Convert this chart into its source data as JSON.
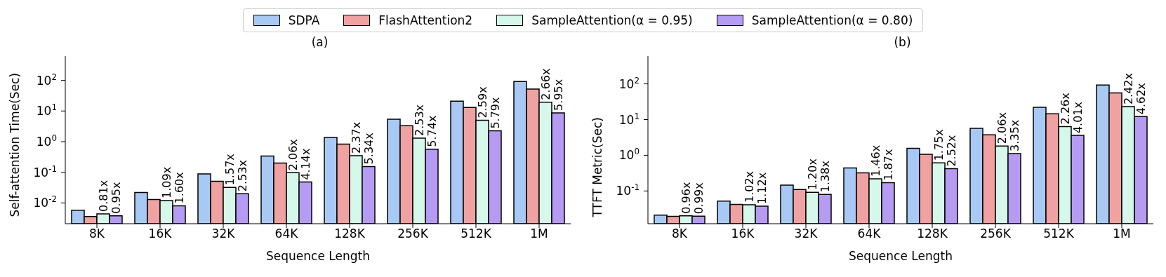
{
  "chart_data": [
    {
      "type": "bar",
      "title": "(a)",
      "xlabel": "Sequence Length",
      "ylabel": "Self-attention Time(Sec)",
      "categories": [
        "8K",
        "16K",
        "32K",
        "64K",
        "128K",
        "256K",
        "512K",
        "1M"
      ],
      "log": true,
      "ylim": [
        0.0021,
        620
      ],
      "yticks": [
        {
          "value": 0.01,
          "label": "10$^{-2}$"
        },
        {
          "value": 0.1,
          "label": "10$^{-1}$"
        },
        {
          "value": 1,
          "label": "10$^{0}$"
        },
        {
          "value": 10,
          "label": "10$^{1}$"
        },
        {
          "value": 100,
          "label": "10$^{2}$"
        }
      ],
      "legend": "top",
      "grid": false,
      "series": [
        {
          "name": "SDPA",
          "color": "#a9c9f5",
          "values": [
            0.0058,
            0.022,
            0.089,
            0.34,
            1.38,
            5.4,
            21,
            92
          ]
        },
        {
          "name": "FlashAttention2",
          "color": "#f0a1a1",
          "values": [
            0.0036,
            0.013,
            0.051,
            0.2,
            0.83,
            3.3,
            13,
            52
          ]
        },
        {
          "name": "SampleAttention(α = 0.95)",
          "color": "#d6f8eb",
          "values": [
            0.0044,
            0.012,
            0.032,
            0.097,
            0.35,
            1.3,
            5,
            19.5
          ]
        },
        {
          "name": "SampleAttention(α = 0.80)",
          "color": "#b69bf2",
          "values": [
            0.0038,
            0.0081,
            0.02,
            0.048,
            0.155,
            0.57,
            2.25,
            8.7
          ]
        }
      ],
      "annotations": [
        {
          "text": "0.81x",
          "x": "8K",
          "y": 0.0044
        },
        {
          "text": "1.09x",
          "x": "16K",
          "y": 0.012
        },
        {
          "text": "1.57x",
          "x": "32K",
          "y": 0.032
        },
        {
          "text": "2.06x",
          "x": "64K",
          "y": 0.097
        },
        {
          "text": "2.37x",
          "x": "128K",
          "y": 0.35
        },
        {
          "text": "2.53x",
          "x": "256K",
          "y": 1.3
        },
        {
          "text": "2.59x",
          "x": "512K",
          "y": 5
        },
        {
          "text": "2.66x",
          "x": "1M",
          "y": 19.5
        },
        {
          "text": "0.95x",
          "x": "8K",
          "y": 0.0038
        },
        {
          "text": "1.60x",
          "x": "16K",
          "y": 0.0081
        },
        {
          "text": "2.53x",
          "x": "32K",
          "y": 0.02
        },
        {
          "text": "4.14x",
          "x": "64K",
          "y": 0.048
        },
        {
          "text": "5.34x",
          "x": "128K",
          "y": 0.155
        },
        {
          "text": "5.74x",
          "x": "256K",
          "y": 0.57
        },
        {
          "text": "5.79x",
          "x": "512K",
          "y": 2.25
        },
        {
          "text": "5.95x",
          "x": "1M",
          "y": 8.7
        }
      ]
    },
    {
      "type": "bar",
      "title": "(b)",
      "xlabel": "Sequence Length",
      "ylabel": "TTFT Metric(Sec)",
      "categories": [
        "8K",
        "16K",
        "32K",
        "64K",
        "128K",
        "256K",
        "512K",
        "1M"
      ],
      "log": true,
      "ylim": [
        0.0121,
        600
      ],
      "yticks": [
        {
          "value": 0.1,
          "label": "10$^{-1}$"
        },
        {
          "value": 1,
          "label": "10$^{0}$"
        },
        {
          "value": 10,
          "label": "10$^{1}$"
        },
        {
          "value": 100,
          "label": "10$^{2}$"
        }
      ],
      "grid": false,
      "series": [
        {
          "color": "#a9c9f5",
          "values": [
            0.021,
            0.052,
            0.146,
            0.44,
            1.56,
            5.7,
            22,
            93
          ]
        },
        {
          "color": "#f0a1a1",
          "values": [
            0.0194,
            0.042,
            0.11,
            0.32,
            1.07,
            3.74,
            14.5,
            56
          ]
        },
        {
          "color": "#d6f8eb",
          "values": [
            0.0202,
            0.041,
            0.092,
            0.22,
            0.61,
            1.82,
            6.4,
            23
          ]
        },
        {
          "color": "#b69bf2",
          "values": [
            0.0196,
            0.0375,
            0.08,
            0.17,
            0.42,
            1.12,
            3.6,
            12.1
          ]
        }
      ],
      "annotations": [
        {
          "text": "0.96x",
          "x": "8K",
          "y": 0.0202
        },
        {
          "text": "1.02x",
          "x": "16K",
          "y": 0.041
        },
        {
          "text": "1.20x",
          "x": "32K",
          "y": 0.092
        },
        {
          "text": "1.46x",
          "x": "64K",
          "y": 0.22
        },
        {
          "text": "1.75x",
          "x": "128K",
          "y": 0.61
        },
        {
          "text": "2.06x",
          "x": "256K",
          "y": 1.82
        },
        {
          "text": "2.26x",
          "x": "512K",
          "y": 6.4
        },
        {
          "text": "2.42x",
          "x": "1M",
          "y": 23
        },
        {
          "text": "0.99x",
          "x": "8K",
          "y": 0.0196
        },
        {
          "text": "1.12x",
          "x": "16K",
          "y": 0.0375
        },
        {
          "text": "1.38x",
          "x": "32K",
          "y": 0.08
        },
        {
          "text": "1.87x",
          "x": "64K",
          "y": 0.17
        },
        {
          "text": "2.52x",
          "x": "128K",
          "y": 0.42
        },
        {
          "text": "3.35x",
          "x": "256K",
          "y": 1.12
        },
        {
          "text": "4.01x",
          "x": "512K",
          "y": 3.6
        },
        {
          "text": "4.62x",
          "x": "1M",
          "y": 12.1
        }
      ]
    }
  ]
}
